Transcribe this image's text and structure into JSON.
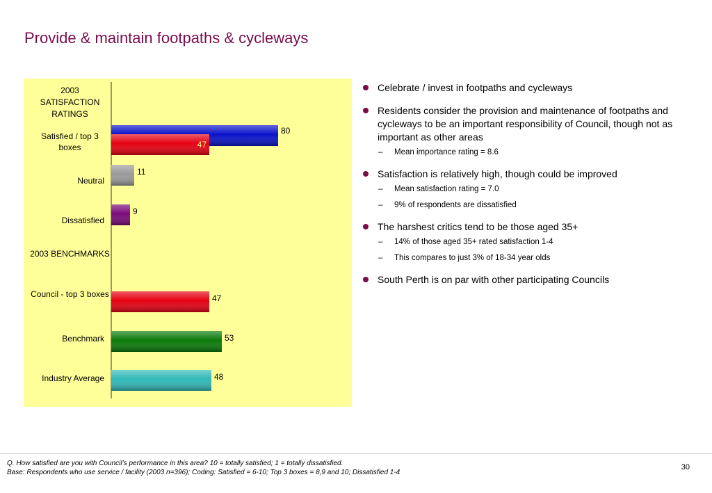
{
  "slide": {
    "title": "Provide & maintain footpaths & cycleways",
    "page_number": "30",
    "footnote_q": "Q. How satisfied are you with Council’s performance in this area?  10 = totally satisfied; 1 = totally dissatisfied.",
    "footnote_base": "Base: Respondents who use service / facility (2003 n=396);  Coding: Satisfied = 6-10; Top 3 boxes = 8,9 and 10; Dissatisfied 1-4"
  },
  "chart_data": {
    "type": "bar",
    "orientation": "horizontal",
    "sections": [
      {
        "heading": "2003 SATISFACTION RATINGS"
      },
      {
        "heading": "2003 BENCHMARKS"
      }
    ],
    "rows": [
      {
        "label": "Satisfied / top 3 boxes",
        "bars": [
          {
            "value": 80,
            "label": "80",
            "color": "#0a12c8"
          },
          {
            "value": 47,
            "label": "47",
            "color": "#e60012",
            "label_inside": true
          }
        ]
      },
      {
        "label": "Neutral",
        "bars": [
          {
            "value": 11,
            "label": "11",
            "color": "#9a9a9a"
          }
        ]
      },
      {
        "label": "Dissatisfied",
        "bars": [
          {
            "value": 9,
            "label": "9",
            "color": "#7a0a7a"
          }
        ]
      },
      {
        "label": "Council - top 3 boxes",
        "bars": [
          {
            "value": 47,
            "label": "47",
            "color": "#e60012"
          }
        ]
      },
      {
        "label": "Benchmark",
        "bars": [
          {
            "value": 53,
            "label": "53",
            "color": "#0a7a0a"
          }
        ]
      },
      {
        "label": "Industry Average",
        "bars": [
          {
            "value": 48,
            "label": "48",
            "color": "#30b8b8"
          }
        ]
      }
    ],
    "xlim": [
      0,
      100
    ],
    "grid": false,
    "background": "#ffff99"
  },
  "bullets": [
    {
      "text": "Celebrate / invest in footpaths and cycleways",
      "subs": []
    },
    {
      "text": "Residents consider the provision and maintenance of footpaths and cycleways to be an important responsibility of Council, though not as important as other areas",
      "subs": [
        "Mean importance rating = 8.6"
      ]
    },
    {
      "text": "Satisfaction is relatively high, though could be improved",
      "subs": [
        "Mean satisfaction rating = 7.0",
        "9% of respondents are dissatisfied"
      ]
    },
    {
      "text": "The harshest critics tend to be those aged 35+",
      "subs": [
        "14% of those aged 35+ rated satisfaction 1-4",
        "This compares to just 3% of 18-34 year olds"
      ]
    },
    {
      "text": "South Perth is on par with other participating Councils",
      "subs": []
    }
  ],
  "colors": {
    "accent": "#7a0c4a",
    "panel": "#ffff99"
  }
}
